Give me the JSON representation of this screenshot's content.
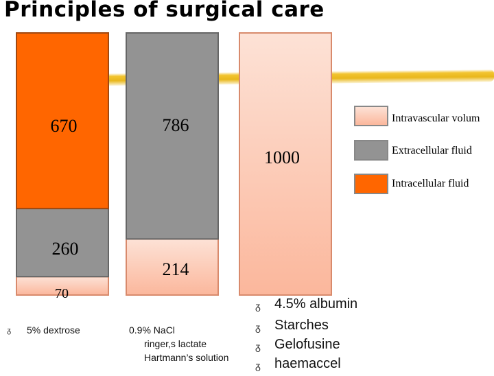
{
  "title": "Principles of surgical care",
  "chart_data": {
    "type": "bar",
    "stacked": true,
    "categories": [
      "5% dextrose",
      "0.9% NaCl ringer,s lactate Hartmann's solution",
      "4.5% albumin Starches Gelofusine haemaccel"
    ],
    "series": [
      {
        "name": "Intravascular volume",
        "values": [
          70,
          214,
          1000
        ],
        "color": "#fdc8b4"
      },
      {
        "name": "Extracellular fluid",
        "values": [
          260,
          786,
          0
        ],
        "color": "#939393"
      },
      {
        "name": "Intracellular fluid",
        "values": [
          670,
          0,
          0
        ],
        "color": "#ff6600"
      }
    ],
    "data_labels": [
      [
        "70",
        "214",
        "1000"
      ],
      [
        "260",
        "786",
        ""
      ],
      [
        "670",
        "",
        ""
      ]
    ],
    "ylim": [
      0,
      1000
    ],
    "legend_position": "right",
    "grid": false
  },
  "legend": [
    {
      "label": "Intravascular volum",
      "color": "#fdc8b4"
    },
    {
      "label": "Extracellular fluid",
      "color": "#939393"
    },
    {
      "label": "Intracellular fluid",
      "color": "#ff6600"
    }
  ],
  "captions": {
    "col1": [
      "5% dextrose"
    ],
    "col2": [
      "0.9% NaCl",
      "ringer,s lactate",
      "Hartmann’s solution"
    ],
    "col3": [
      "4.5% albumin",
      "Starches",
      "Gelofusine",
      "haemaccel"
    ]
  },
  "bullet_glyph": "ᵹ"
}
